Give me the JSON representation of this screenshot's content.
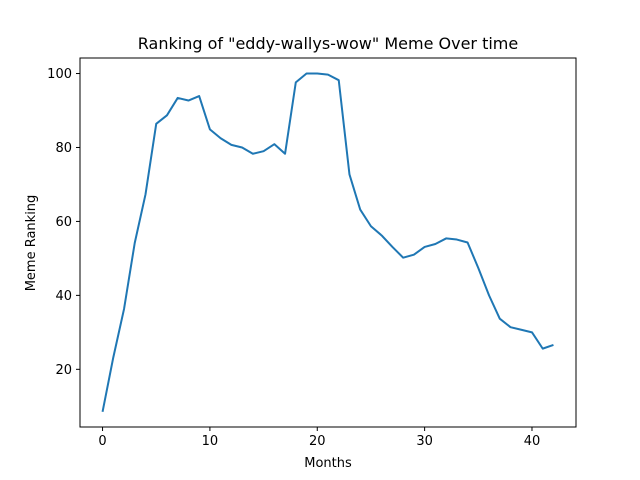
{
  "chart_data": {
    "type": "line",
    "title": "Ranking of \"eddy-wallys-wow\" Meme Over time",
    "xlabel": "Months",
    "ylabel": "Meme Ranking",
    "xlim": [
      -2.1,
      44.1
    ],
    "ylim": [
      4.4,
      104.2
    ],
    "xticks": [
      0,
      10,
      20,
      30,
      40
    ],
    "yticks": [
      20,
      40,
      60,
      80,
      100
    ],
    "grid": false,
    "legend": false,
    "series": [
      {
        "color": "#1f77b4",
        "x": [
          0,
          1,
          2,
          3,
          4,
          5,
          6,
          7,
          8,
          9,
          10,
          11,
          12,
          13,
          14,
          15,
          16,
          17,
          18,
          19,
          20,
          21,
          22,
          23,
          24,
          25,
          26,
          27,
          28,
          29,
          30,
          31,
          32,
          33,
          34,
          35,
          36,
          37,
          38,
          39,
          40,
          41,
          42
        ],
        "values": [
          8.5,
          23.2,
          36.3,
          54.2,
          67.3,
          86.4,
          88.7,
          93.4,
          92.7,
          93.9,
          84.9,
          82.5,
          80.7,
          80.0,
          78.3,
          79.0,
          80.9,
          78.3,
          97.6,
          100.0,
          100.0,
          99.7,
          98.2,
          72.7,
          63.2,
          58.7,
          56.2,
          53.1,
          50.2,
          51.0,
          53.1,
          53.9,
          55.4,
          55.1,
          54.3,
          47.4,
          40.0,
          33.7,
          31.4,
          30.7,
          30.0,
          25.6,
          26.6
        ]
      }
    ]
  }
}
